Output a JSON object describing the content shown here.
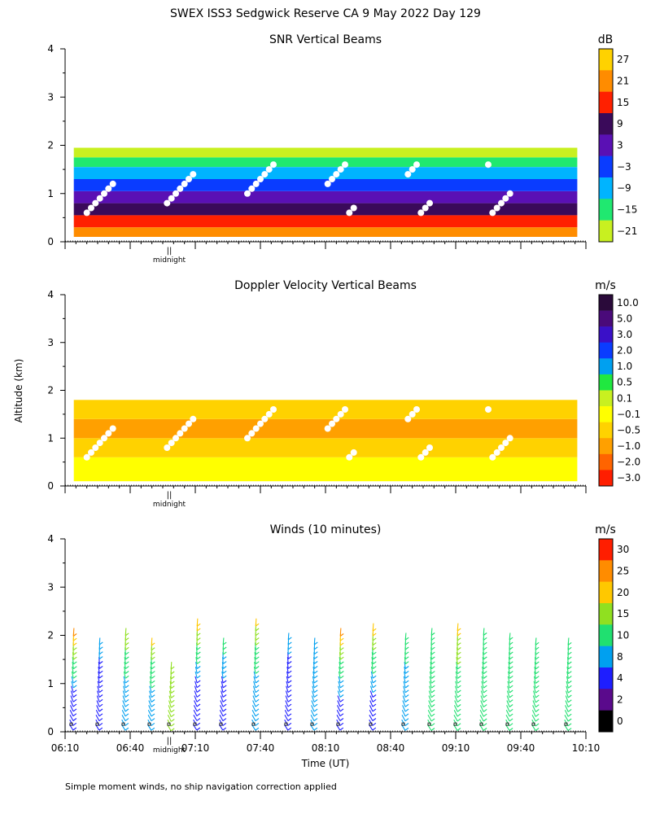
{
  "figure": {
    "title": "SWEX ISS3 Sedgwick Reserve CA   9 May 2022 Day 129",
    "ylabel": "Altitude (km)",
    "xlabel": "Time (UT)",
    "footnote": "Simple moment winds, no ship navigation correction applied",
    "midnight_label": "midnight",
    "midnight_mark": "||"
  },
  "chart_data": [
    {
      "type": "heatmap",
      "title": "SNR Vertical Beams",
      "unit": "dB",
      "ylim": [
        0,
        4
      ],
      "yticks": [
        "0",
        "1",
        "2",
        "3",
        "4"
      ],
      "colorbar": {
        "labels": [
          "27",
          "21",
          "15",
          "9",
          "3",
          "−3",
          "−9",
          "−15",
          "−21"
        ],
        "colors": [
          "#ffd200",
          "#ff8c00",
          "#ff2000",
          "#3a0a5a",
          "#5a10b4",
          "#0a3cff",
          "#00b4ff",
          "#20e870",
          "#c8f020"
        ]
      },
      "layers": [
        {
          "from": 0.1,
          "to": 0.3,
          "label": "21",
          "color": "#ff8c00"
        },
        {
          "from": 0.3,
          "to": 0.55,
          "label": "15",
          "color": "#ff2000"
        },
        {
          "from": 0.55,
          "to": 0.8,
          "label": "9",
          "color": "#3a0a5a"
        },
        {
          "from": 0.8,
          "to": 1.05,
          "label": "3",
          "color": "#5a10b4"
        },
        {
          "from": 1.05,
          "to": 1.3,
          "label": "−3",
          "color": "#0a3cff"
        },
        {
          "from": 1.3,
          "to": 1.55,
          "label": "−9",
          "color": "#00b4ff"
        },
        {
          "from": 1.55,
          "to": 1.75,
          "label": "−15",
          "color": "#20e870"
        },
        {
          "from": 1.75,
          "to": 1.95,
          "label": "−21",
          "color": "#c8f020"
        }
      ]
    },
    {
      "type": "heatmap",
      "title": "Doppler Velocity Vertical Beams",
      "unit": "m/s",
      "ylim": [
        0,
        4
      ],
      "yticks": [
        "0",
        "1",
        "2",
        "3",
        "4"
      ],
      "colorbar": {
        "labels": [
          "10.0",
          "5.0",
          "3.0",
          "2.0",
          "1.0",
          "0.5",
          "0.1",
          "−0.1",
          "−0.5",
          "−1.0",
          "−2.0",
          "−3.0"
        ],
        "colors": [
          "#2a0a3a",
          "#4a0a7a",
          "#3a10c8",
          "#0a3cff",
          "#00a0f0",
          "#20e840",
          "#c8f020",
          "#ffff00",
          "#ffd200",
          "#ffa000",
          "#ff6400",
          "#ff1e00"
        ]
      },
      "layers": [
        {
          "from": 0.1,
          "to": 0.6,
          "label": "−0.1",
          "color": "#ffff00"
        },
        {
          "from": 0.6,
          "to": 1.0,
          "label": "−0.5",
          "color": "#ffd200"
        },
        {
          "from": 1.0,
          "to": 1.4,
          "label": "−1.0",
          "color": "#ffa000"
        },
        {
          "from": 1.4,
          "to": 1.8,
          "label": "−0.5",
          "color": "#ffd200"
        }
      ]
    },
    {
      "type": "scatter",
      "title": "Winds (10 minutes)",
      "unit": "m/s",
      "ylim": [
        0,
        4
      ],
      "yticks": [
        "0",
        "1",
        "2",
        "3",
        "4"
      ],
      "xticks": [
        "06:10",
        "06:40",
        "07:10",
        "07:40",
        "08:10",
        "08:40",
        "09:10",
        "09:40",
        "10:10"
      ],
      "colorbar": {
        "labels": [
          "30",
          "25",
          "20",
          "15",
          "10",
          "8",
          "4",
          "2",
          "0"
        ],
        "colors": [
          "#ff1e00",
          "#ff8c00",
          "#ffc800",
          "#90e020",
          "#20e070",
          "#00a0f0",
          "#1e1eff",
          "#5a0a8c",
          "#000000"
        ]
      },
      "profiles": [
        {
          "time": "06:13",
          "top": 2.2,
          "speed": 6,
          "upper_speed": 28
        },
        {
          "time": "06:25",
          "top": 2.0,
          "speed": 7,
          "upper_speed": 9
        },
        {
          "time": "06:37",
          "top": 2.2,
          "speed": 8,
          "upper_speed": 20
        },
        {
          "time": "06:49",
          "top": 2.0,
          "speed": 8,
          "upper_speed": 22
        },
        {
          "time": "06:58",
          "top": 1.5,
          "speed": 16,
          "upper_speed": 16
        },
        {
          "time": "07:10",
          "top": 2.4,
          "speed": 6,
          "upper_speed": 24
        },
        {
          "time": "07:22",
          "top": 2.0,
          "speed": 7,
          "upper_speed": 12
        },
        {
          "time": "07:37",
          "top": 2.4,
          "speed": 8,
          "upper_speed": 22
        },
        {
          "time": "07:52",
          "top": 2.1,
          "speed": 7,
          "upper_speed": 9
        },
        {
          "time": "08:04",
          "top": 2.0,
          "speed": 8,
          "upper_speed": 9
        },
        {
          "time": "08:16",
          "top": 2.2,
          "speed": 7,
          "upper_speed": 28
        },
        {
          "time": "08:31",
          "top": 2.3,
          "speed": 7,
          "upper_speed": 25
        },
        {
          "time": "08:46",
          "top": 2.1,
          "speed": 9,
          "upper_speed": 12
        },
        {
          "time": "08:58",
          "top": 2.2,
          "speed": 12,
          "upper_speed": 15
        },
        {
          "time": "09:10",
          "top": 2.3,
          "speed": 12,
          "upper_speed": 22
        },
        {
          "time": "09:22",
          "top": 2.2,
          "speed": 13,
          "upper_speed": 15
        },
        {
          "time": "09:34",
          "top": 2.1,
          "speed": 12,
          "upper_speed": 11
        },
        {
          "time": "09:46",
          "top": 2.0,
          "speed": 14,
          "upper_speed": 14
        },
        {
          "time": "10:01",
          "top": 2.0,
          "speed": 13,
          "upper_speed": 15
        }
      ]
    }
  ]
}
